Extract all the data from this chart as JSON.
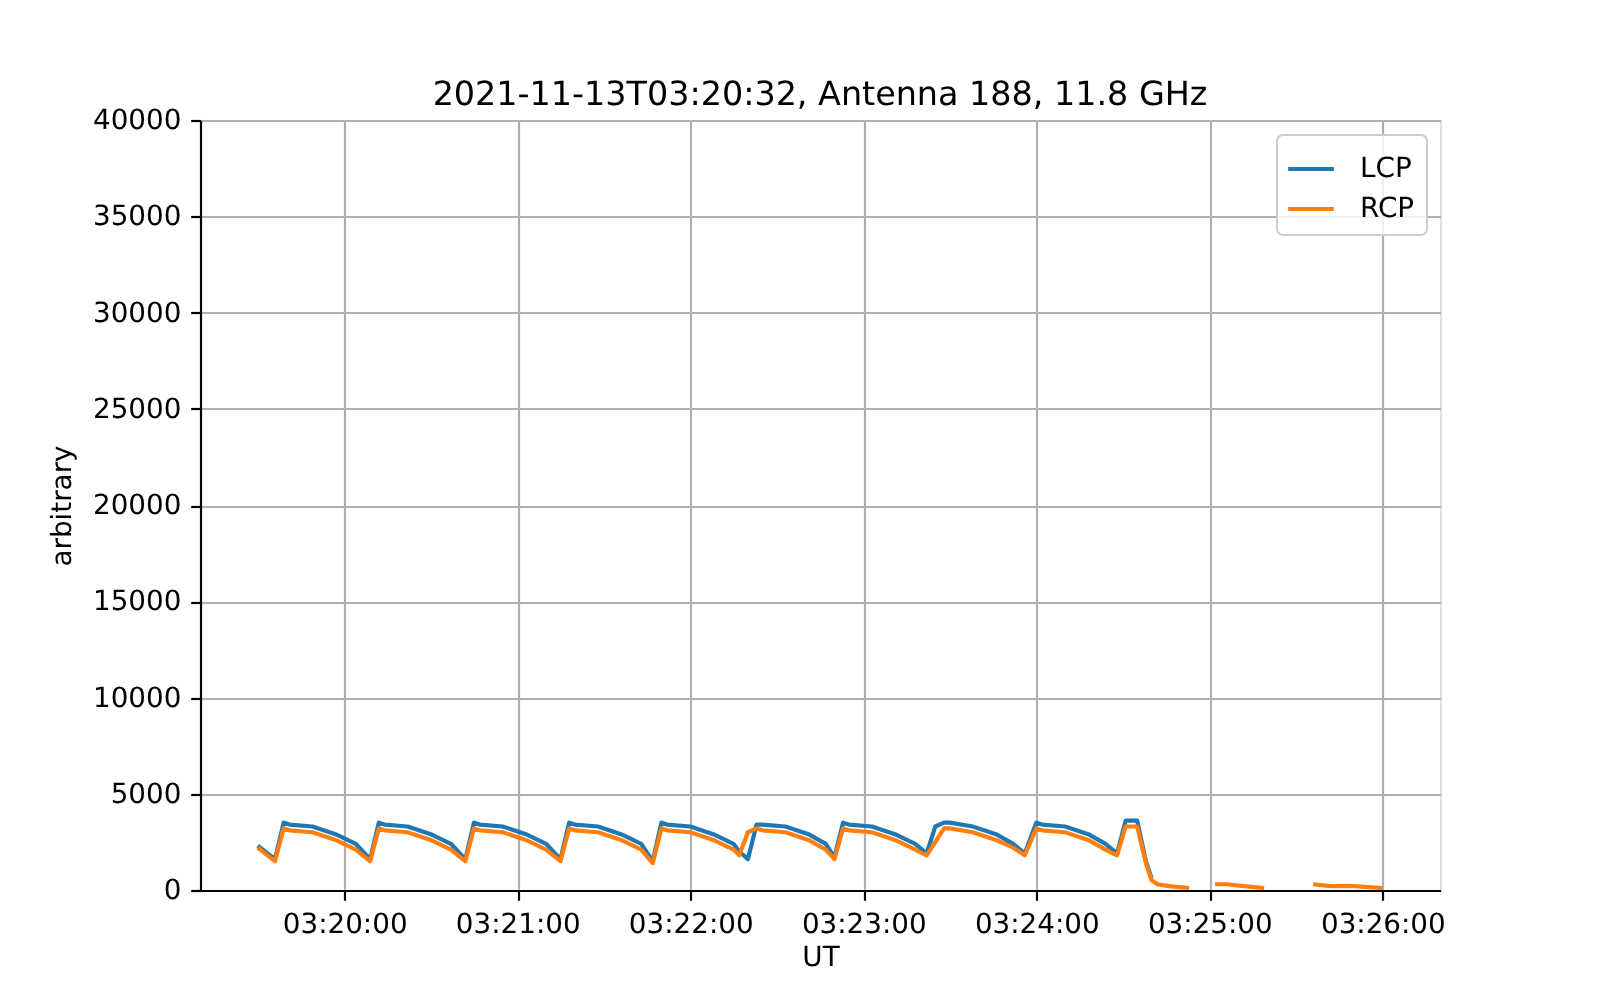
{
  "chart_data": {
    "type": "line",
    "title": "2021-11-13T03:20:32, Antenna 188, 11.8 GHz",
    "xlabel": "UT",
    "ylabel": "arbitrary",
    "x": [
      "2021-11-13T03:19:30",
      "2021-11-13T03:19:36",
      "2021-11-13T03:19:39",
      "2021-11-13T03:19:41",
      "2021-11-13T03:19:49",
      "2021-11-13T03:19:57",
      "2021-11-13T03:20:04",
      "2021-11-13T03:20:09",
      "2021-11-13T03:20:12",
      "2021-11-13T03:20:14",
      "2021-11-13T03:20:22",
      "2021-11-13T03:20:30",
      "2021-11-13T03:20:37",
      "2021-11-13T03:20:42",
      "2021-11-13T03:20:45",
      "2021-11-13T03:20:47",
      "2021-11-13T03:20:55",
      "2021-11-13T03:21:03",
      "2021-11-13T03:21:10",
      "2021-11-13T03:21:15",
      "2021-11-13T03:21:18",
      "2021-11-13T03:21:20",
      "2021-11-13T03:21:28",
      "2021-11-13T03:21:36",
      "2021-11-13T03:21:43",
      "2021-11-13T03:21:47",
      "2021-11-13T03:21:50",
      "2021-11-13T03:21:52",
      "2021-11-13T03:22:00",
      "2021-11-13T03:22:08",
      "2021-11-13T03:22:15",
      "2021-11-13T03:22:17",
      "2021-11-13T03:22:20",
      "2021-11-13T03:22:23",
      "2021-11-13T03:22:25",
      "2021-11-13T03:22:33",
      "2021-11-13T03:22:41",
      "2021-11-13T03:22:47",
      "2021-11-13T03:22:50",
      "2021-11-13T03:22:53",
      "2021-11-13T03:22:55",
      "2021-11-13T03:23:03",
      "2021-11-13T03:23:11",
      "2021-11-13T03:23:18",
      "2021-11-13T03:23:22",
      "2021-11-13T03:23:25",
      "2021-11-13T03:23:28",
      "2021-11-13T03:23:30",
      "2021-11-13T03:23:38",
      "2021-11-13T03:23:46",
      "2021-11-13T03:23:52",
      "2021-11-13T03:23:56",
      "2021-11-13T03:24:00",
      "2021-11-13T03:24:02",
      "2021-11-13T03:24:10",
      "2021-11-13T03:24:18",
      "2021-11-13T03:24:24",
      "2021-11-13T03:24:28",
      "2021-11-13T03:24:31",
      "2021-11-13T03:24:35",
      "2021-11-13T03:24:38",
      "2021-11-13T03:24:40",
      "2021-11-13T03:24:42",
      "2021-11-13T03:24:46",
      "2021-11-13T03:24:53",
      "2021-11-13T03:24:58",
      "2021-11-13T03:25:02",
      "2021-11-13T03:25:06",
      "2021-11-13T03:25:12",
      "2021-11-13T03:25:19",
      "2021-11-13T03:25:28",
      "2021-11-13T03:25:36",
      "2021-11-13T03:25:42",
      "2021-11-13T03:25:50",
      "2021-11-13T03:26:00"
    ],
    "series": [
      {
        "name": "LCP",
        "color": "#1f77b4",
        "values": [
          2300,
          1600,
          3500,
          3400,
          3300,
          2900,
          2400,
          1600,
          3500,
          3400,
          3300,
          2900,
          2400,
          1600,
          3500,
          3400,
          3300,
          2900,
          2400,
          1600,
          3500,
          3400,
          3300,
          2900,
          2400,
          1500,
          3500,
          3400,
          3300,
          2900,
          2400,
          2000,
          1600,
          3400,
          3400,
          3300,
          2900,
          2400,
          1700,
          3500,
          3400,
          3300,
          2900,
          2400,
          1900,
          3300,
          3500,
          3500,
          3300,
          2900,
          2400,
          1900,
          3500,
          3400,
          3300,
          2900,
          2400,
          1900,
          3600,
          3600,
          1500,
          600,
          null,
          null,
          null,
          null,
          null,
          null,
          null,
          null,
          null,
          null,
          null,
          null,
          null
        ]
      },
      {
        "name": "RCP",
        "color": "#ff7f0e",
        "values": [
          2200,
          1500,
          3200,
          3100,
          3000,
          2600,
          2100,
          1500,
          3200,
          3100,
          3000,
          2600,
          2100,
          1500,
          3200,
          3100,
          3000,
          2600,
          2100,
          1500,
          3200,
          3100,
          3000,
          2600,
          2100,
          1400,
          3200,
          3100,
          3000,
          2600,
          2100,
          1800,
          3000,
          3200,
          3100,
          3000,
          2600,
          2100,
          1600,
          3200,
          3100,
          3000,
          2600,
          2100,
          1800,
          2500,
          3200,
          3200,
          3000,
          2600,
          2200,
          1800,
          3200,
          3100,
          3000,
          2600,
          2100,
          1800,
          3300,
          3300,
          1400,
          500,
          300,
          200,
          100,
          null,
          300,
          300,
          200,
          100,
          null,
          300,
          200,
          200,
          100
        ]
      }
    ],
    "xlim": [
      "2021-11-13T03:19:10",
      "2021-11-13T03:26:20"
    ],
    "xticks": [
      {
        "value": "2021-11-13T03:20:00",
        "label": "03:20:00"
      },
      {
        "value": "2021-11-13T03:21:00",
        "label": "03:21:00"
      },
      {
        "value": "2021-11-13T03:22:00",
        "label": "03:22:00"
      },
      {
        "value": "2021-11-13T03:23:00",
        "label": "03:23:00"
      },
      {
        "value": "2021-11-13T03:24:00",
        "label": "03:24:00"
      },
      {
        "value": "2021-11-13T03:25:00",
        "label": "03:25:00"
      },
      {
        "value": "2021-11-13T03:26:00",
        "label": "03:26:00"
      }
    ],
    "ylim": [
      0,
      40000
    ],
    "yticks": [
      0,
      5000,
      10000,
      15000,
      20000,
      25000,
      30000,
      35000,
      40000
    ],
    "grid": true,
    "legend": "top right"
  }
}
